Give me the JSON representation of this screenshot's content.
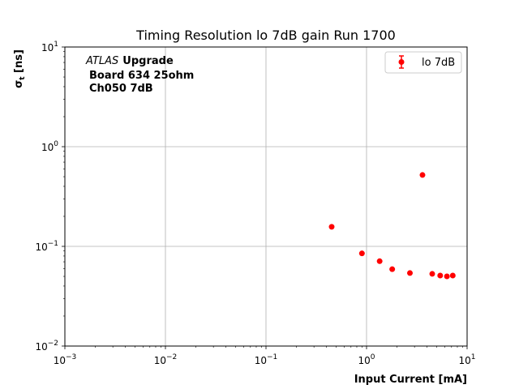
{
  "chart_data": {
    "type": "scatter",
    "title": "Timing Resolution lo 7dB gain Run 1700",
    "xlabel": "Input Current [mA]",
    "ylabel": "σt [ns]",
    "ylabel_main": "σ",
    "ylabel_sub": "t",
    "ylabel_unit": " [ns]",
    "xscale": "log",
    "yscale": "log",
    "xlim": [
      0.001,
      10
    ],
    "ylim": [
      0.01,
      10
    ],
    "grid": true,
    "legend_position": "top-right",
    "xticks": [
      {
        "value": 0.001,
        "base": "10",
        "exp": "−3"
      },
      {
        "value": 0.01,
        "base": "10",
        "exp": "−2"
      },
      {
        "value": 0.1,
        "base": "10",
        "exp": "−1"
      },
      {
        "value": 1,
        "base": "10",
        "exp": "0"
      },
      {
        "value": 10,
        "base": "10",
        "exp": "1"
      }
    ],
    "yticks": [
      {
        "value": 0.01,
        "base": "10",
        "exp": "−2"
      },
      {
        "value": 0.1,
        "base": "10",
        "exp": "−1"
      },
      {
        "value": 1,
        "base": "10",
        "exp": "0"
      },
      {
        "value": 10,
        "base": "10",
        "exp": "1"
      }
    ],
    "annotation": {
      "atlas": "ATLAS",
      "upgrade": "Upgrade",
      "line2": "Board 634 25ohm",
      "line3": "Ch050 7dB"
    },
    "series": [
      {
        "name": "lo 7dB",
        "color": "#ff0000",
        "points": [
          {
            "x": 0.45,
            "y": 0.157
          },
          {
            "x": 0.9,
            "y": 0.085
          },
          {
            "x": 1.35,
            "y": 0.071
          },
          {
            "x": 1.8,
            "y": 0.059
          },
          {
            "x": 2.7,
            "y": 0.054
          },
          {
            "x": 3.6,
            "y": 0.52
          },
          {
            "x": 4.5,
            "y": 0.053
          },
          {
            "x": 5.4,
            "y": 0.051
          },
          {
            "x": 6.3,
            "y": 0.05
          },
          {
            "x": 7.2,
            "y": 0.051
          }
        ]
      }
    ]
  }
}
